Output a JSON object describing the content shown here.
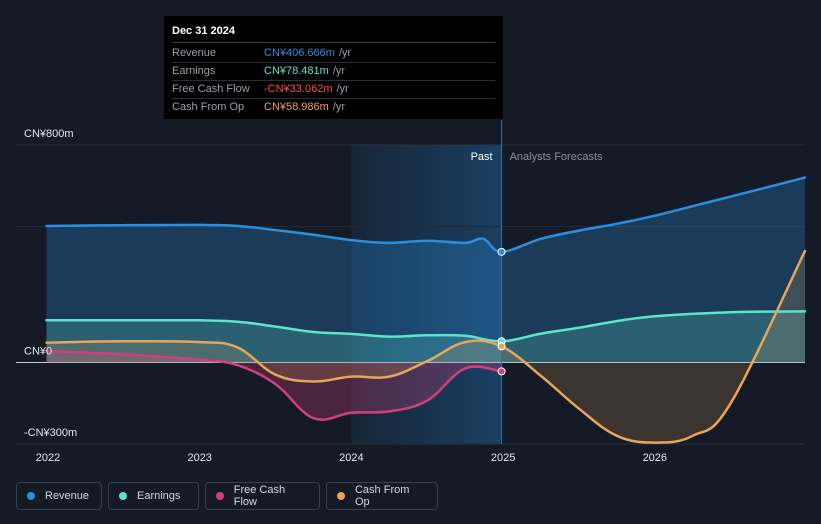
{
  "colors": {
    "background": "#151b26",
    "revenue": "#2b8fe0",
    "earnings": "#5ee3cf",
    "free_cash_flow": "#d0407e",
    "cash_from_op": "#e9a55a",
    "fcf_value": "#ff4d4d"
  },
  "tooltip": {
    "date": "Dec 31 2024",
    "rows": [
      {
        "label": "Revenue",
        "value": "CN¥406.666m",
        "unit": "/yr"
      },
      {
        "label": "Earnings",
        "value": "CN¥78.481m",
        "unit": "/yr"
      },
      {
        "label": "Free Cash Flow",
        "value": "-CN¥33.062m",
        "unit": "/yr"
      },
      {
        "label": "Cash From Op",
        "value": "CN¥58.986m",
        "unit": "/yr"
      }
    ]
  },
  "legend": [
    {
      "name": "Revenue",
      "color": "#2b8fe0"
    },
    {
      "name": "Earnings",
      "color": "#5ee3cf"
    },
    {
      "name": "Free Cash Flow",
      "color": "#d0407e"
    },
    {
      "name": "Cash From Op",
      "color": "#e9a55a"
    }
  ],
  "chart_data": {
    "type": "line",
    "title": "",
    "xlabel": "",
    "ylabel": "",
    "unit": "CN¥ millions per year",
    "xlim": [
      2022.0,
      2026.99
    ],
    "ylim": [
      -300,
      800
    ],
    "y_tick_labels": [
      {
        "value": 800,
        "label": "CN¥800m"
      },
      {
        "value": 0,
        "label": "CN¥0"
      },
      {
        "value": -300,
        "label": "-CN¥300m"
      }
    ],
    "x_tick_labels": [
      {
        "value": 2022.0,
        "label": "2022"
      },
      {
        "value": 2023.0,
        "label": "2023"
      },
      {
        "value": 2024.0,
        "label": "2024"
      },
      {
        "value": 2025.0,
        "label": "2025"
      },
      {
        "value": 2026.0,
        "label": "2026"
      }
    ],
    "past_label": "Past",
    "forecast_label": "Analysts Forecasts",
    "divider_x": 2024.99,
    "highlight_start": 2024.0,
    "series": [
      {
        "name": "Revenue",
        "color": "#2b8fe0",
        "fill": true,
        "x": [
          2021.99,
          2022.5,
          2023.0,
          2023.25,
          2023.5,
          2023.75,
          2024.0,
          2024.25,
          2024.5,
          2024.75,
          2024.87,
          2024.99,
          2025.25,
          2025.5,
          2025.75,
          2026.0,
          2026.25,
          2026.5,
          2026.99
        ],
        "y": [
          502,
          505,
          506,
          502,
          487,
          470,
          450,
          440,
          448,
          440,
          455,
          407,
          455,
          485,
          510,
          540,
          575,
          610,
          680
        ]
      },
      {
        "name": "Earnings",
        "color": "#5ee3cf",
        "fill": true,
        "x": [
          2021.99,
          2022.5,
          2023.0,
          2023.25,
          2023.5,
          2023.75,
          2024.0,
          2024.25,
          2024.5,
          2024.75,
          2024.99,
          2025.25,
          2025.5,
          2025.75,
          2026.0,
          2026.5,
          2026.99
        ],
        "y": [
          155,
          155,
          155,
          150,
          132,
          112,
          105,
          95,
          100,
          98,
          78,
          106,
          128,
          152,
          170,
          185,
          188
        ]
      },
      {
        "name": "Free Cash Flow",
        "color": "#d0407e",
        "fill": true,
        "x": [
          2021.99,
          2022.5,
          2023.0,
          2023.25,
          2023.5,
          2023.75,
          2024.0,
          2024.25,
          2024.5,
          2024.75,
          2024.99
        ],
        "y": [
          42,
          30,
          10,
          -10,
          -80,
          -205,
          -185,
          -180,
          -140,
          -22,
          -33
        ]
      },
      {
        "name": "Cash From Op",
        "color": "#e9a55a",
        "fill": true,
        "x": [
          2021.99,
          2022.5,
          2023.0,
          2023.25,
          2023.5,
          2023.75,
          2024.0,
          2024.25,
          2024.5,
          2024.75,
          2024.99,
          2025.25,
          2025.5,
          2025.75,
          2026.0,
          2026.25,
          2026.5,
          2026.99
        ],
        "y": [
          73,
          78,
          75,
          55,
          -45,
          -70,
          -52,
          -52,
          5,
          75,
          59,
          -50,
          -170,
          -270,
          -295,
          -270,
          -150,
          410
        ]
      }
    ],
    "markers_at": 2024.99
  }
}
